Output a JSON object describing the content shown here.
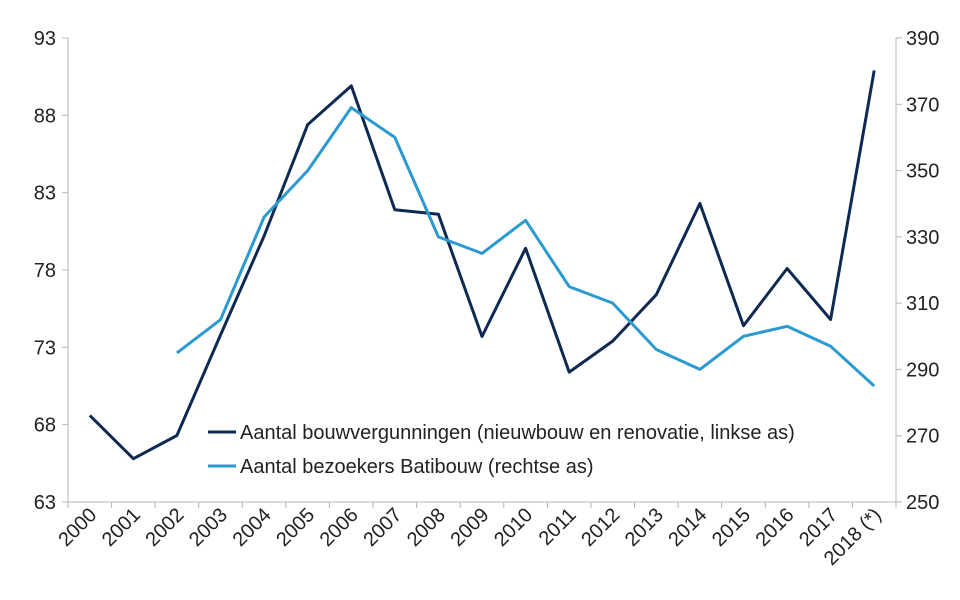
{
  "chart_data": {
    "type": "line",
    "title": "",
    "xlabel": "",
    "ylabel": "",
    "categories": [
      "2000",
      "2001",
      "2002",
      "2003",
      "2004",
      "2005",
      "2006",
      "2007",
      "2008",
      "2009",
      "2010",
      "2011",
      "2012",
      "2013",
      "2014",
      "2015",
      "2016",
      "2017",
      "2018 (*)"
    ],
    "y_left": {
      "ticks": [
        63,
        68,
        73,
        78,
        83,
        88,
        93
      ],
      "ylim": [
        63,
        93
      ]
    },
    "y_right": {
      "ticks": [
        250,
        270,
        290,
        310,
        330,
        350,
        370,
        390
      ],
      "ylim": [
        250,
        390
      ]
    },
    "grid": false,
    "legend_position": "bottom-right",
    "series": [
      {
        "name": "Aantal bouwvergunningen (nieuwbouw en renovatie, linkse as)",
        "axis": "left",
        "color": "#0f2a52",
        "values": [
          68.6,
          65.8,
          67.3,
          73.8,
          80.2,
          87.4,
          89.9,
          81.9,
          81.6,
          73.7,
          79.4,
          71.4,
          73.4,
          76.4,
          82.3,
          74.4,
          78.1,
          74.8,
          90.9
        ]
      },
      {
        "name": "Aantal bezoekers Batibouw (rechtse as)",
        "axis": "right",
        "color": "#2a9ad0",
        "values": [
          null,
          null,
          295,
          305,
          336,
          350,
          369,
          360,
          330,
          325,
          335,
          315,
          310,
          296,
          290,
          300,
          303,
          297,
          285
        ]
      }
    ]
  }
}
